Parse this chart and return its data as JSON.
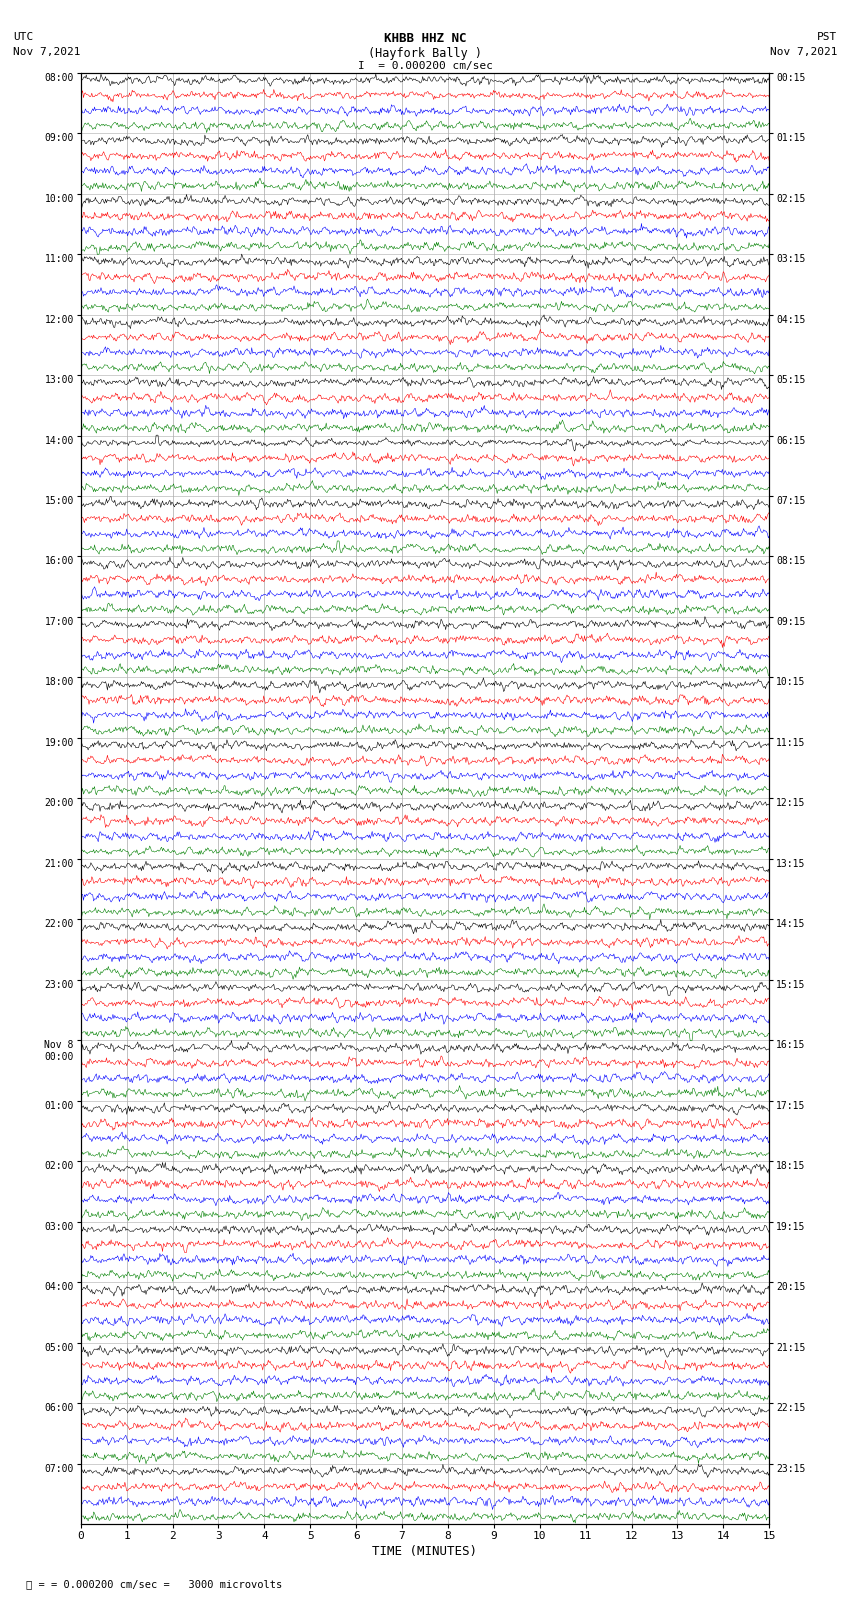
{
  "title_line1": "KHBB HHZ NC",
  "title_line2": "(Hayfork Bally )",
  "title_line3": "I  = 0.000200 cm/sec",
  "left_label": "UTC",
  "left_date": "Nov 7,2021",
  "right_label": "PST",
  "right_date": "Nov 7,2021",
  "xlabel": "TIME (MINUTES)",
  "scale_text": "= 0.000200 cm/sec =   3000 microvolts",
  "x_ticks": [
    0,
    1,
    2,
    3,
    4,
    5,
    6,
    7,
    8,
    9,
    10,
    11,
    12,
    13,
    14,
    15
  ],
  "num_minutes": 15,
  "background_color": "#ffffff",
  "trace_colors": [
    "black",
    "red",
    "blue",
    "green"
  ],
  "utc_times": [
    "08:00",
    "09:00",
    "10:00",
    "11:00",
    "12:00",
    "13:00",
    "14:00",
    "15:00",
    "16:00",
    "17:00",
    "18:00",
    "19:00",
    "20:00",
    "21:00",
    "22:00",
    "23:00",
    "Nov 8\n00:00",
    "01:00",
    "02:00",
    "03:00",
    "04:00",
    "05:00",
    "06:00",
    "07:00"
  ],
  "pst_times": [
    "00:15",
    "01:15",
    "02:15",
    "03:15",
    "04:15",
    "05:15",
    "06:15",
    "07:15",
    "08:15",
    "09:15",
    "10:15",
    "11:15",
    "12:15",
    "13:15",
    "14:15",
    "15:15",
    "16:15",
    "17:15",
    "18:15",
    "19:15",
    "20:15",
    "21:15",
    "22:15",
    "23:15"
  ],
  "num_hours": 24,
  "traces_per_hour": 4,
  "grid_color": "#aaaaaa",
  "trace_linewidth": 0.4,
  "noise_scale": [
    0.28,
    0.22,
    0.18,
    0.2
  ],
  "spike_rates": [
    0.008,
    0.01,
    0.007,
    0.009
  ],
  "spike_scales": [
    1.8,
    1.4,
    1.2,
    1.5
  ]
}
